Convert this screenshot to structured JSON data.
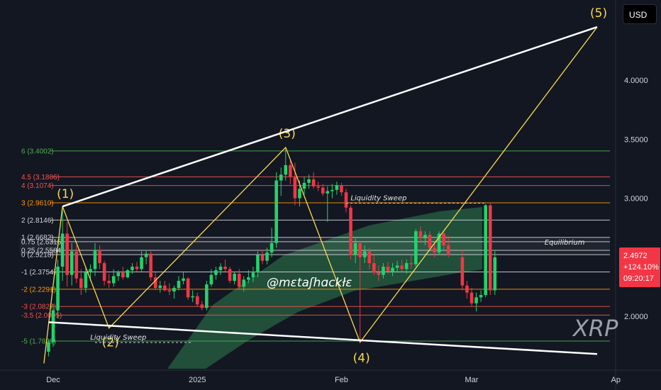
{
  "currency_label": "USD",
  "watermark": "XRP",
  "handle": "@mɛtaʃhɑckłɛ",
  "price_tag": {
    "price": "2.4972",
    "change": "+124.10%",
    "countdown": "09:20:17"
  },
  "colors": {
    "background": "#131722",
    "bull": "#22d36b",
    "bear": "#f23645",
    "wave": "#f7d94c",
    "channel": "#ffffff",
    "cloud": "#2e7d4f"
  },
  "chart_data": {
    "type": "candlestick",
    "price_axis": {
      "ticks": [
        "4.0000",
        "3.5000",
        "3.0000",
        "2.0000"
      ],
      "tick_values": [
        4.0,
        3.5,
        3.0,
        2.0
      ],
      "range": [
        1.6,
        4.5
      ]
    },
    "time_axis": {
      "labels": [
        "Dec",
        "2025",
        "Feb",
        "Mar",
        "Ap"
      ],
      "label_days": [
        0,
        31,
        62,
        90,
        121
      ],
      "range_days": [
        -2,
        121
      ]
    },
    "fib_levels": [
      {
        "label": "6 (3.4002)",
        "value": 3.4002,
        "color": "#4caf50"
      },
      {
        "label": "4.5 (3.1806)",
        "value": 3.1806,
        "color": "#ef5350"
      },
      {
        "label": "4 (3.1074)",
        "value": 3.1074,
        "color": "#ef5350"
      },
      {
        "label": "3 (2.9610)",
        "value": 2.961,
        "color": "#ff9800"
      },
      {
        "label": "2 (2.8146)",
        "value": 2.8146,
        "color": "#d1d4dc"
      },
      {
        "label": "1 (2.6682)",
        "value": 2.6682,
        "color": "#d1d4dc"
      },
      {
        "label": "0.75 (2.6316)",
        "value": 2.6316,
        "color": "#d1d4dc"
      },
      {
        "label": "0.25 (2.5584)",
        "value": 2.5584,
        "color": "#d1d4dc"
      },
      {
        "label": "0 (2.5218)",
        "value": 2.5218,
        "color": "#d1d4dc"
      },
      {
        "label": "-1 (2.3754)",
        "value": 2.3754,
        "color": "#d1d4dc"
      },
      {
        "label": "-2 (2.2291)",
        "value": 2.2291,
        "color": "#ff9800"
      },
      {
        "label": "-3 (2.0827)",
        "value": 2.0827,
        "color": "#ef5350"
      },
      {
        "label": "-3.5 (2.0095)",
        "value": 2.0095,
        "color": "#ef5350"
      },
      {
        "label": "-5 (1.7899)",
        "value": 1.7899,
        "color": "#4caf50"
      }
    ],
    "candles": [
      {
        "d": -1,
        "o": 1.7,
        "h": 1.8,
        "l": 1.66,
        "c": 1.78
      },
      {
        "d": 0,
        "o": 1.78,
        "h": 2.1,
        "l": 1.74,
        "c": 2.05
      },
      {
        "d": 1,
        "o": 2.05,
        "h": 2.48,
        "l": 1.98,
        "c": 2.42
      },
      {
        "d": 2,
        "o": 2.42,
        "h": 2.9,
        "l": 2.3,
        "c": 2.7
      },
      {
        "d": 3,
        "o": 2.7,
        "h": 2.8,
        "l": 2.25,
        "c": 2.35
      },
      {
        "d": 4,
        "o": 2.35,
        "h": 2.62,
        "l": 2.26,
        "c": 2.55
      },
      {
        "d": 5,
        "o": 2.55,
        "h": 2.6,
        "l": 2.28,
        "c": 2.32
      },
      {
        "d": 6,
        "o": 2.32,
        "h": 2.4,
        "l": 2.18,
        "c": 2.24
      },
      {
        "d": 7,
        "o": 2.24,
        "h": 2.42,
        "l": 2.2,
        "c": 2.38
      },
      {
        "d": 8,
        "o": 2.38,
        "h": 2.44,
        "l": 2.3,
        "c": 2.4
      },
      {
        "d": 9,
        "o": 2.4,
        "h": 2.62,
        "l": 2.34,
        "c": 2.56
      },
      {
        "d": 10,
        "o": 2.56,
        "h": 2.6,
        "l": 2.4,
        "c": 2.45
      },
      {
        "d": 11,
        "o": 2.45,
        "h": 2.47,
        "l": 2.26,
        "c": 2.3
      },
      {
        "d": 12,
        "o": 2.3,
        "h": 2.36,
        "l": 2.24,
        "c": 2.28
      },
      {
        "d": 13,
        "o": 2.28,
        "h": 2.4,
        "l": 2.25,
        "c": 2.34
      },
      {
        "d": 14,
        "o": 2.34,
        "h": 2.39,
        "l": 2.3,
        "c": 2.37
      },
      {
        "d": 15,
        "o": 2.37,
        "h": 2.42,
        "l": 2.31,
        "c": 2.33
      },
      {
        "d": 16,
        "o": 2.33,
        "h": 2.4,
        "l": 2.32,
        "c": 2.39
      },
      {
        "d": 17,
        "o": 2.39,
        "h": 2.45,
        "l": 2.36,
        "c": 2.42
      },
      {
        "d": 18,
        "o": 2.42,
        "h": 2.46,
        "l": 2.38,
        "c": 2.4
      },
      {
        "d": 19,
        "o": 2.4,
        "h": 2.55,
        "l": 2.38,
        "c": 2.5
      },
      {
        "d": 20,
        "o": 2.5,
        "h": 2.56,
        "l": 2.44,
        "c": 2.53
      },
      {
        "d": 21,
        "o": 2.53,
        "h": 2.55,
        "l": 2.3,
        "c": 2.33
      },
      {
        "d": 22,
        "o": 2.33,
        "h": 2.37,
        "l": 2.22,
        "c": 2.24
      },
      {
        "d": 23,
        "o": 2.24,
        "h": 2.3,
        "l": 2.2,
        "c": 2.26
      },
      {
        "d": 24,
        "o": 2.26,
        "h": 2.3,
        "l": 2.21,
        "c": 2.22
      },
      {
        "d": 25,
        "o": 2.22,
        "h": 2.28,
        "l": 2.18,
        "c": 2.21
      },
      {
        "d": 26,
        "o": 2.21,
        "h": 2.26,
        "l": 2.15,
        "c": 2.24
      },
      {
        "d": 27,
        "o": 2.24,
        "h": 2.34,
        "l": 2.22,
        "c": 2.3
      },
      {
        "d": 28,
        "o": 2.3,
        "h": 2.38,
        "l": 2.27,
        "c": 2.32
      },
      {
        "d": 29,
        "o": 2.32,
        "h": 2.33,
        "l": 2.14,
        "c": 2.16
      },
      {
        "d": 30,
        "o": 2.16,
        "h": 2.22,
        "l": 2.12,
        "c": 2.17
      },
      {
        "d": 31,
        "o": 2.17,
        "h": 2.2,
        "l": 2.08,
        "c": 2.1
      },
      {
        "d": 32,
        "o": 2.1,
        "h": 2.13,
        "l": 2.05,
        "c": 2.07
      },
      {
        "d": 33,
        "o": 2.07,
        "h": 2.3,
        "l": 2.05,
        "c": 2.27
      },
      {
        "d": 34,
        "o": 2.27,
        "h": 2.4,
        "l": 2.25,
        "c": 2.35
      },
      {
        "d": 35,
        "o": 2.35,
        "h": 2.42,
        "l": 2.31,
        "c": 2.39
      },
      {
        "d": 36,
        "o": 2.39,
        "h": 2.45,
        "l": 2.35,
        "c": 2.42
      },
      {
        "d": 37,
        "o": 2.42,
        "h": 2.48,
        "l": 2.38,
        "c": 2.4
      },
      {
        "d": 38,
        "o": 2.4,
        "h": 2.42,
        "l": 2.28,
        "c": 2.3
      },
      {
        "d": 39,
        "o": 2.3,
        "h": 2.38,
        "l": 2.27,
        "c": 2.36
      },
      {
        "d": 40,
        "o": 2.36,
        "h": 2.4,
        "l": 2.23,
        "c": 2.25
      },
      {
        "d": 41,
        "o": 2.25,
        "h": 2.34,
        "l": 2.21,
        "c": 2.31
      },
      {
        "d": 42,
        "o": 2.31,
        "h": 2.39,
        "l": 2.28,
        "c": 2.33
      },
      {
        "d": 43,
        "o": 2.33,
        "h": 2.42,
        "l": 2.29,
        "c": 2.37
      },
      {
        "d": 44,
        "o": 2.37,
        "h": 2.55,
        "l": 2.33,
        "c": 2.52
      },
      {
        "d": 45,
        "o": 2.52,
        "h": 2.56,
        "l": 2.44,
        "c": 2.47
      },
      {
        "d": 46,
        "o": 2.47,
        "h": 2.58,
        "l": 2.44,
        "c": 2.54
      },
      {
        "d": 47,
        "o": 2.54,
        "h": 2.75,
        "l": 2.5,
        "c": 2.62
      },
      {
        "d": 48,
        "o": 2.62,
        "h": 3.22,
        "l": 2.58,
        "c": 3.15
      },
      {
        "d": 49,
        "o": 3.15,
        "h": 3.26,
        "l": 3.02,
        "c": 3.2
      },
      {
        "d": 50,
        "o": 3.2,
        "h": 3.42,
        "l": 3.15,
        "c": 3.28
      },
      {
        "d": 51,
        "o": 3.28,
        "h": 3.32,
        "l": 3.12,
        "c": 3.18
      },
      {
        "d": 52,
        "o": 3.18,
        "h": 3.3,
        "l": 2.94,
        "c": 3.0
      },
      {
        "d": 53,
        "o": 3.0,
        "h": 3.15,
        "l": 2.93,
        "c": 3.08
      },
      {
        "d": 54,
        "o": 3.08,
        "h": 3.18,
        "l": 3.03,
        "c": 3.13
      },
      {
        "d": 55,
        "o": 3.13,
        "h": 3.2,
        "l": 3.08,
        "c": 3.16
      },
      {
        "d": 56,
        "o": 3.16,
        "h": 3.22,
        "l": 3.08,
        "c": 3.1
      },
      {
        "d": 57,
        "o": 3.1,
        "h": 3.14,
        "l": 3.06,
        "c": 3.09
      },
      {
        "d": 58,
        "o": 3.09,
        "h": 3.12,
        "l": 3.02,
        "c": 3.04
      },
      {
        "d": 59,
        "o": 3.04,
        "h": 3.1,
        "l": 2.8,
        "c": 3.06
      },
      {
        "d": 60,
        "o": 3.06,
        "h": 3.12,
        "l": 3.0,
        "c": 3.07
      },
      {
        "d": 61,
        "o": 3.07,
        "h": 3.14,
        "l": 3.03,
        "c": 3.11
      },
      {
        "d": 62,
        "o": 3.11,
        "h": 3.13,
        "l": 3.02,
        "c": 3.05
      },
      {
        "d": 63,
        "o": 3.05,
        "h": 3.08,
        "l": 2.88,
        "c": 2.92
      },
      {
        "d": 64,
        "o": 2.92,
        "h": 2.94,
        "l": 2.48,
        "c": 2.52
      },
      {
        "d": 65,
        "o": 2.52,
        "h": 2.66,
        "l": 2.45,
        "c": 2.62
      },
      {
        "d": 66,
        "o": 2.62,
        "h": 2.64,
        "l": 1.78,
        "c": 2.5
      },
      {
        "d": 67,
        "o": 2.5,
        "h": 2.6,
        "l": 2.45,
        "c": 2.55
      },
      {
        "d": 68,
        "o": 2.55,
        "h": 2.58,
        "l": 2.4,
        "c": 2.45
      },
      {
        "d": 69,
        "o": 2.45,
        "h": 2.52,
        "l": 2.35,
        "c": 2.37
      },
      {
        "d": 70,
        "o": 2.37,
        "h": 2.43,
        "l": 2.3,
        "c": 2.35
      },
      {
        "d": 71,
        "o": 2.35,
        "h": 2.45,
        "l": 2.32,
        "c": 2.42
      },
      {
        "d": 72,
        "o": 2.42,
        "h": 2.46,
        "l": 2.36,
        "c": 2.38
      },
      {
        "d": 73,
        "o": 2.38,
        "h": 2.45,
        "l": 2.34,
        "c": 2.41
      },
      {
        "d": 74,
        "o": 2.41,
        "h": 2.47,
        "l": 2.37,
        "c": 2.43
      },
      {
        "d": 75,
        "o": 2.43,
        "h": 2.48,
        "l": 2.38,
        "c": 2.4
      },
      {
        "d": 76,
        "o": 2.4,
        "h": 2.48,
        "l": 2.36,
        "c": 2.45
      },
      {
        "d": 77,
        "o": 2.45,
        "h": 2.52,
        "l": 2.4,
        "c": 2.44
      },
      {
        "d": 78,
        "o": 2.44,
        "h": 2.74,
        "l": 2.42,
        "c": 2.72
      },
      {
        "d": 79,
        "o": 2.72,
        "h": 2.76,
        "l": 2.62,
        "c": 2.66
      },
      {
        "d": 80,
        "o": 2.66,
        "h": 2.72,
        "l": 2.6,
        "c": 2.69
      },
      {
        "d": 81,
        "o": 2.69,
        "h": 2.72,
        "l": 2.55,
        "c": 2.58
      },
      {
        "d": 82,
        "o": 2.58,
        "h": 2.62,
        "l": 2.5,
        "c": 2.54
      },
      {
        "d": 83,
        "o": 2.54,
        "h": 2.72,
        "l": 2.52,
        "c": 2.7
      },
      {
        "d": 84,
        "o": 2.7,
        "h": 2.73,
        "l": 2.56,
        "c": 2.6
      },
      {
        "d": 85,
        "o": 2.6,
        "h": 2.68,
        "l": 2.5,
        "c": 2.52
      },
      {
        "d": 88,
        "o": 2.5,
        "h": 2.56,
        "l": 2.22,
        "c": 2.26
      },
      {
        "d": 89,
        "o": 2.26,
        "h": 2.3,
        "l": 2.15,
        "c": 2.2
      },
      {
        "d": 90,
        "o": 2.2,
        "h": 2.24,
        "l": 2.08,
        "c": 2.11
      },
      {
        "d": 91,
        "o": 2.11,
        "h": 2.2,
        "l": 2.04,
        "c": 2.16
      },
      {
        "d": 92,
        "o": 2.16,
        "h": 2.22,
        "l": 2.12,
        "c": 2.18
      },
      {
        "d": 93,
        "o": 2.18,
        "h": 2.95,
        "l": 2.16,
        "c": 2.94
      },
      {
        "d": 94,
        "o": 2.94,
        "h": 2.96,
        "l": 2.18,
        "c": 2.22
      },
      {
        "d": 95,
        "o": 2.22,
        "h": 2.56,
        "l": 2.18,
        "c": 2.5
      }
    ],
    "wave_points": [
      {
        "label": "(1)",
        "d": 2,
        "v": 2.93
      },
      {
        "label": "(2)",
        "d": 12,
        "v": 1.9
      },
      {
        "label": "(3)",
        "d": 50,
        "v": 3.43
      },
      {
        "label": "(4)",
        "d": 66,
        "v": 1.78
      },
      {
        "label": "(5)",
        "d": 117,
        "v": 4.45
      }
    ],
    "wave_start": {
      "d": -2,
      "v": 1.6
    },
    "channel_lines": [
      {
        "from": {
          "d": 2,
          "v": 2.93
        },
        "to": {
          "d": 117,
          "v": 4.45
        }
      },
      {
        "from": {
          "d": -1,
          "v": 1.95
        },
        "to": {
          "d": 117,
          "v": 1.68
        }
      }
    ],
    "annotations": [
      {
        "text": "Liquidity Sweep",
        "d": 14,
        "v": 1.79,
        "line_from_d": 9,
        "line_to_d": 30
      },
      {
        "text": "Liquidity Sweep",
        "d": 70,
        "v": 2.97,
        "line_from_d": 63,
        "line_to_d": 93
      },
      {
        "text": "Equilibrium",
        "d": 110,
        "v": 2.595
      }
    ]
  }
}
